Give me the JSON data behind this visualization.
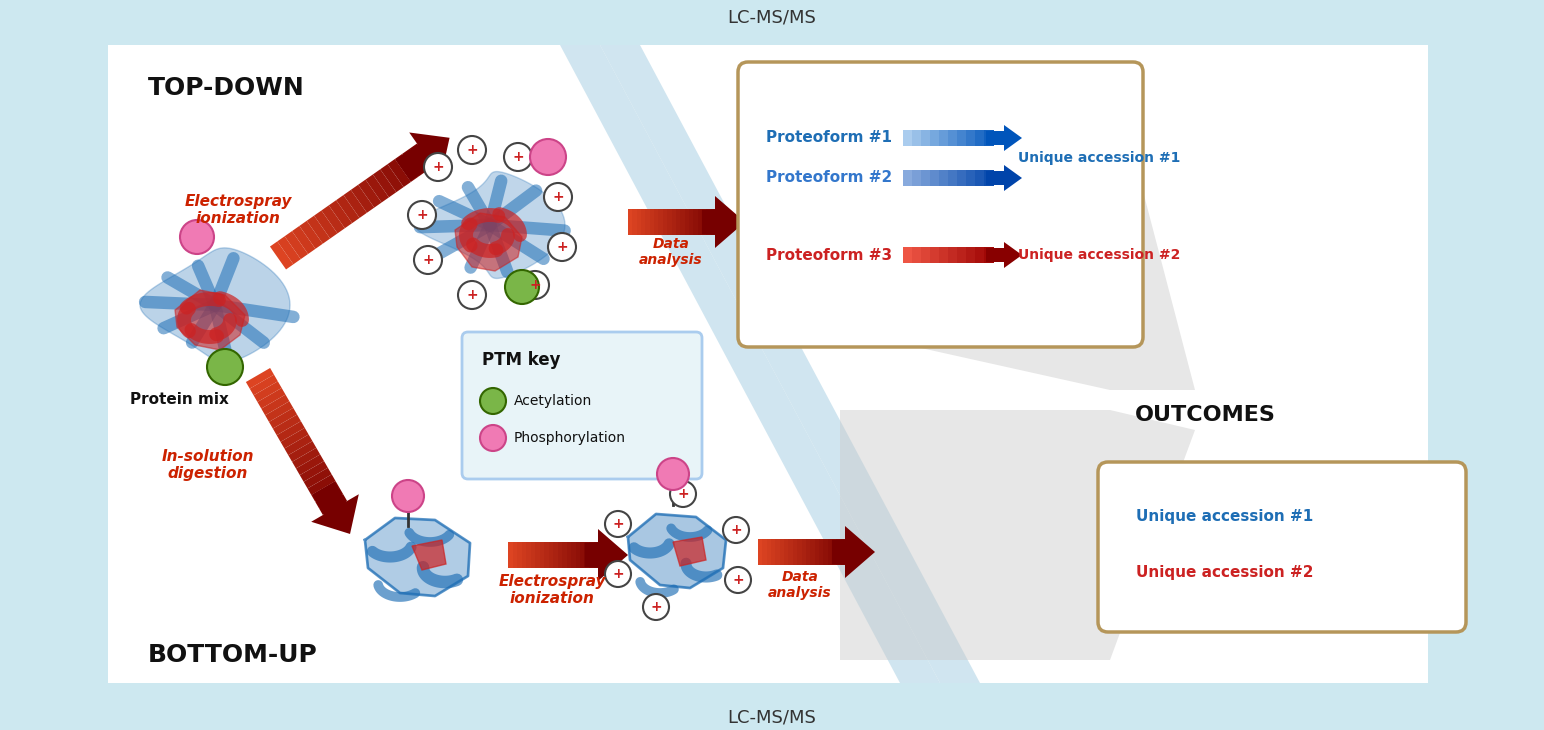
{
  "bg_color": "#cde8f0",
  "white_bg": "#ffffff",
  "title_top": "LC-MS/MS",
  "title_bottom": "LC-MS/MS",
  "label_topdown": "TOP-DOWN",
  "label_bottomup": "BOTTOM-UP",
  "label_outcomes": "OUTCOMES",
  "label_protein_mix": "Protein mix",
  "label_electrospray_top": "Electrospray\nionization",
  "label_insolution": "In-solution\ndigestion",
  "label_electrospray_bottom": "Electrospray\nionization",
  "label_data_analysis_top": "Data\nanalysis",
  "label_data_analysis_bottom": "Data\nanalysis",
  "ptm_key_title": "PTM key",
  "ptm_acetylation": "Acetylation",
  "ptm_phosphorylation": "Phosphorylation",
  "proteoform1": "Proteoform #1",
  "proteoform2": "Proteoform #2",
  "proteoform3": "Proteoform #3",
  "unique1_top": "Unique accession #1",
  "unique2_top": "Unique accession #2",
  "unique1_bottom": "Unique accession #1",
  "unique2_bottom": "Unique accession #2",
  "color_blue": "#1e6eb5",
  "color_red": "#cc2222",
  "color_green": "#7ab648",
  "color_pink": "#f07ab4",
  "color_box_border": "#b5965a",
  "color_ptm_border": "#aaccee",
  "color_diagonal_blue": "#b8d8e8",
  "color_gray_triangle": "#c8c8c8"
}
